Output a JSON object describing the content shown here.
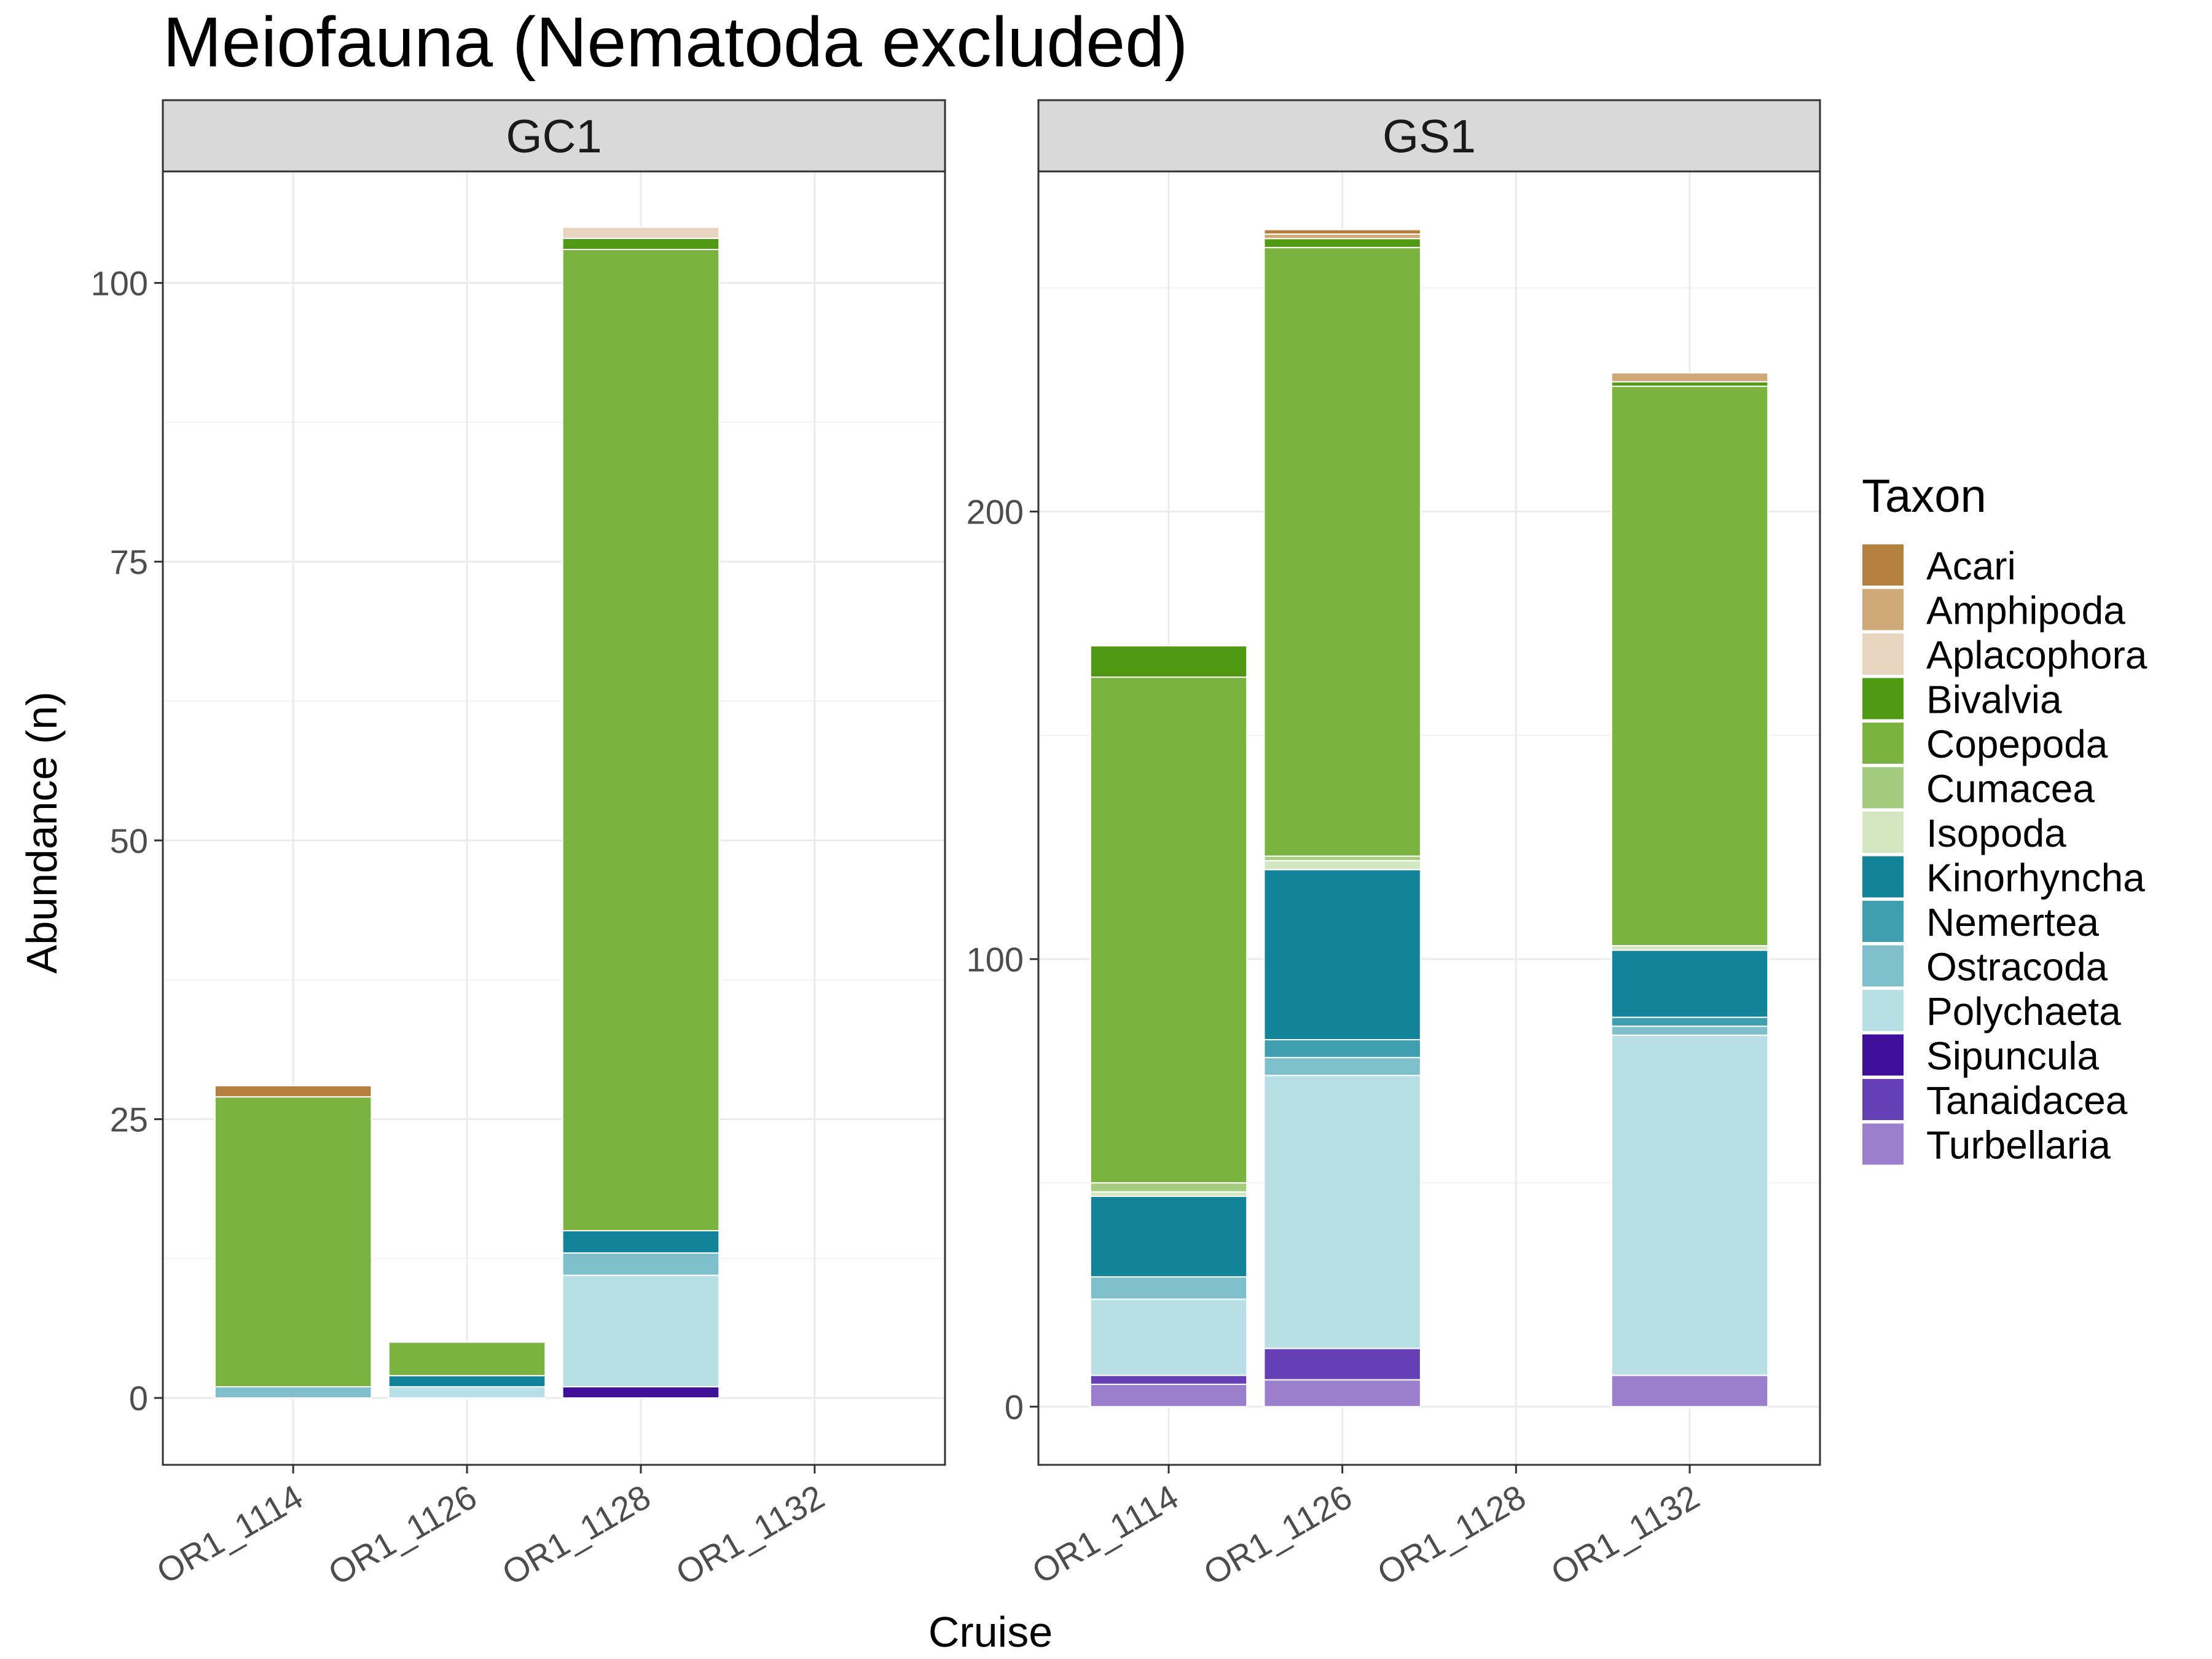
{
  "chart_data": {
    "type": "bar",
    "stacked": true,
    "title": "Meiofauna (Nematoda excluded)",
    "xlabel": "Cruise",
    "ylabel": "Abundance (n)",
    "categories": [
      "OR1_1114",
      "OR1_1126",
      "OR1_1128",
      "OR1_1132"
    ],
    "legend": {
      "title": "Taxon",
      "position": "right",
      "items": [
        {
          "name": "Acari",
          "color": "#b5803f"
        },
        {
          "name": "Amphipoda",
          "color": "#cfa978"
        },
        {
          "name": "Aplacophora",
          "color": "#e8d4be"
        },
        {
          "name": "Bivalvia",
          "color": "#4f9a12"
        },
        {
          "name": "Copepoda",
          "color": "#7ab33f"
        },
        {
          "name": "Cumacea",
          "color": "#a4cc7e"
        },
        {
          "name": "Isopoda",
          "color": "#d3e8c0"
        },
        {
          "name": "Kinorhyncha",
          "color": "#128399"
        },
        {
          "name": "Nemertea",
          "color": "#3f9eb0"
        },
        {
          "name": "Ostracoda",
          "color": "#7fbfcc"
        },
        {
          "name": "Polychaeta",
          "color": "#b9dfe6"
        },
        {
          "name": "Sipuncula",
          "color": "#3f0f99"
        },
        {
          "name": "Tanaidacea",
          "color": "#653fb3"
        },
        {
          "name": "Turbellaria",
          "color": "#9b7fcc"
        }
      ]
    },
    "panels": [
      {
        "label": "GC1",
        "ylim": [
          -6,
          110
        ],
        "yticks": [
          0,
          25,
          50,
          75,
          100
        ],
        "stacks": [
          {
            "category": "OR1_1114",
            "segments": [
              {
                "taxon": "Ostracoda",
                "value": 1
              },
              {
                "taxon": "Copepoda",
                "value": 26
              },
              {
                "taxon": "Acari",
                "value": 1
              }
            ]
          },
          {
            "category": "OR1_1126",
            "segments": [
              {
                "taxon": "Polychaeta",
                "value": 1
              },
              {
                "taxon": "Kinorhyncha",
                "value": 1
              },
              {
                "taxon": "Copepoda",
                "value": 3
              }
            ]
          },
          {
            "category": "OR1_1128",
            "segments": [
              {
                "taxon": "Sipuncula",
                "value": 1
              },
              {
                "taxon": "Polychaeta",
                "value": 10
              },
              {
                "taxon": "Ostracoda",
                "value": 2
              },
              {
                "taxon": "Kinorhyncha",
                "value": 2
              },
              {
                "taxon": "Copepoda",
                "value": 88
              },
              {
                "taxon": "Bivalvia",
                "value": 1
              },
              {
                "taxon": "Aplacophora",
                "value": 1
              }
            ]
          },
          {
            "category": "OR1_1132",
            "segments": []
          }
        ]
      },
      {
        "label": "GS1",
        "ylim": [
          -13,
          276
        ],
        "yticks": [
          0,
          100,
          200
        ],
        "stacks": [
          {
            "category": "OR1_1114",
            "segments": [
              {
                "taxon": "Turbellaria",
                "value": 5
              },
              {
                "taxon": "Tanaidacea",
                "value": 2
              },
              {
                "taxon": "Polychaeta",
                "value": 17
              },
              {
                "taxon": "Ostracoda",
                "value": 5
              },
              {
                "taxon": "Kinorhyncha",
                "value": 18
              },
              {
                "taxon": "Isopoda",
                "value": 1
              },
              {
                "taxon": "Cumacea",
                "value": 2
              },
              {
                "taxon": "Copepoda",
                "value": 113
              },
              {
                "taxon": "Bivalvia",
                "value": 7
              }
            ]
          },
          {
            "category": "OR1_1126",
            "segments": [
              {
                "taxon": "Turbellaria",
                "value": 6
              },
              {
                "taxon": "Tanaidacea",
                "value": 7
              },
              {
                "taxon": "Polychaeta",
                "value": 61
              },
              {
                "taxon": "Ostracoda",
                "value": 4
              },
              {
                "taxon": "Nemertea",
                "value": 4
              },
              {
                "taxon": "Kinorhyncha",
                "value": 38
              },
              {
                "taxon": "Isopoda",
                "value": 2
              },
              {
                "taxon": "Cumacea",
                "value": 1
              },
              {
                "taxon": "Copepoda",
                "value": 136
              },
              {
                "taxon": "Bivalvia",
                "value": 2
              },
              {
                "taxon": "Amphipoda",
                "value": 1
              },
              {
                "taxon": "Acari",
                "value": 1
              }
            ]
          },
          {
            "category": "OR1_1128",
            "segments": []
          },
          {
            "category": "OR1_1132",
            "segments": [
              {
                "taxon": "Turbellaria",
                "value": 7
              },
              {
                "taxon": "Polychaeta",
                "value": 76
              },
              {
                "taxon": "Ostracoda",
                "value": 2
              },
              {
                "taxon": "Nemertea",
                "value": 2
              },
              {
                "taxon": "Kinorhyncha",
                "value": 15
              },
              {
                "taxon": "Isopoda",
                "value": 1
              },
              {
                "taxon": "Copepoda",
                "value": 125
              },
              {
                "taxon": "Bivalvia",
                "value": 1
              },
              {
                "taxon": "Amphipoda",
                "value": 2
              }
            ]
          }
        ]
      }
    ]
  }
}
